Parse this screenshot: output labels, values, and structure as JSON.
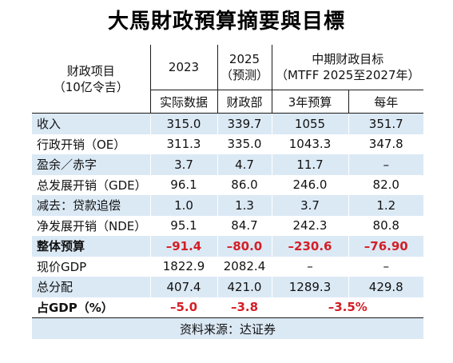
{
  "title": "大馬財政預算摘要與目標",
  "header": {
    "label_line1": "财政项目",
    "label_line2": "（10亿令吉）",
    "col_2023": "2023",
    "col_2025_line1": "2025",
    "col_2025_line2": "（预测）",
    "mtff_line1": "中期财政目标",
    "mtff_line2": "（MTFF 2025至2027年）",
    "sub_actual": "实际数据",
    "sub_ministry": "财政部",
    "sub_3yr": "3年预算",
    "sub_annual": "每年"
  },
  "rows": [
    {
      "label": "收入",
      "v2023": "315.0",
      "v2025": "339.7",
      "v3yr": "1055",
      "vyear": "351.7"
    },
    {
      "label": "行政开销（OE）",
      "v2023": "311.3",
      "v2025": "335.0",
      "v3yr": "1043.3",
      "vyear": "347.8"
    },
    {
      "label": "盈余／赤字",
      "v2023": "3.7",
      "v2025": "4.7",
      "v3yr": "11.7",
      "vyear": "–"
    },
    {
      "label": "总发展开销（GDE）",
      "v2023": "96.1",
      "v2025": "86.0",
      "v3yr": "246.0",
      "vyear": "82.0"
    },
    {
      "label": "减去：贷款追偿",
      "v2023": "1.0",
      "v2025": "1.3",
      "v3yr": "3.7",
      "vyear": "1.2"
    },
    {
      "label": "净发展开销（NDE）",
      "v2023": "95.1",
      "v2025": "84.7",
      "v3yr": "242.3",
      "vyear": "80.8"
    },
    {
      "label": "整体预算",
      "v2023": "–91.4",
      "v2025": "–80.0",
      "v3yr": "–230.6",
      "vyear": "–76.90"
    },
    {
      "label": "现价GDP",
      "v2023": "1822.9",
      "v2025": "2082.4",
      "v3yr": "–",
      "vyear": "–"
    },
    {
      "label": "总分配",
      "v2023": "407.4",
      "v2025": "421.0",
      "v3yr": "1289.3",
      "vyear": "429.8"
    },
    {
      "label": "占GDP（%）",
      "v2023": "–5.0",
      "v2025": "–3.8",
      "vmtff": "–3.5%"
    }
  ],
  "source": "资料来源：达证券",
  "colors": {
    "row_highlight": "#dbe9f5",
    "negative": "#d31f26"
  }
}
